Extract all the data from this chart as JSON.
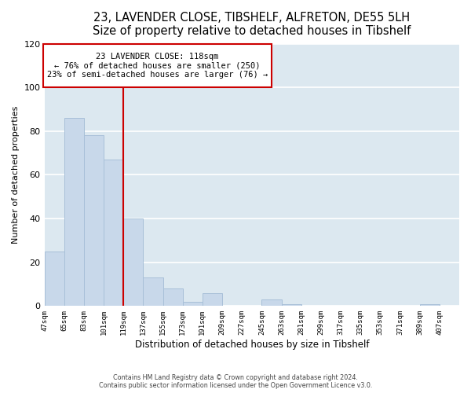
{
  "title": "23, LAVENDER CLOSE, TIBSHELF, ALFRETON, DE55 5LH",
  "subtitle": "Size of property relative to detached houses in Tibshelf",
  "xlabel": "Distribution of detached houses by size in Tibshelf",
  "ylabel": "Number of detached properties",
  "bar_values": [
    25,
    86,
    78,
    67,
    40,
    13,
    8,
    2,
    6,
    0,
    0,
    3,
    1,
    0,
    0,
    0,
    0,
    0,
    0,
    1
  ],
  "bin_starts": [
    47,
    65,
    83,
    101,
    119,
    137,
    155,
    173,
    191,
    209,
    227,
    245,
    263,
    281,
    299,
    317,
    335,
    353,
    371,
    389
  ],
  "bin_width": 18,
  "bin_labels": [
    "47sqm",
    "65sqm",
    "83sqm",
    "101sqm",
    "119sqm",
    "137sqm",
    "155sqm",
    "173sqm",
    "191sqm",
    "209sqm",
    "227sqm",
    "245sqm",
    "263sqm",
    "281sqm",
    "299sqm",
    "317sqm",
    "335sqm",
    "353sqm",
    "371sqm",
    "389sqm",
    "407sqm"
  ],
  "bar_color": "#c8d8ea",
  "bar_edge_color": "#a8c0d8",
  "vline_x": 119,
  "vline_color": "#cc0000",
  "annotation_title": "23 LAVENDER CLOSE: 118sqm",
  "annotation_line1": "← 76% of detached houses are smaller (250)",
  "annotation_line2": "23% of semi-detached houses are larger (76) →",
  "annotation_box_color": "#ffffff",
  "annotation_box_edge": "#cc0000",
  "ylim": [
    0,
    120
  ],
  "yticks": [
    0,
    20,
    40,
    60,
    80,
    100,
    120
  ],
  "footer1": "Contains HM Land Registry data © Crown copyright and database right 2024.",
  "footer2": "Contains public sector information licensed under the Open Government Licence v3.0.",
  "bg_color": "#ffffff",
  "plot_bg_color": "#dce8f0",
  "grid_color": "#ffffff",
  "title_fontsize": 10.5,
  "subtitle_fontsize": 9.5
}
